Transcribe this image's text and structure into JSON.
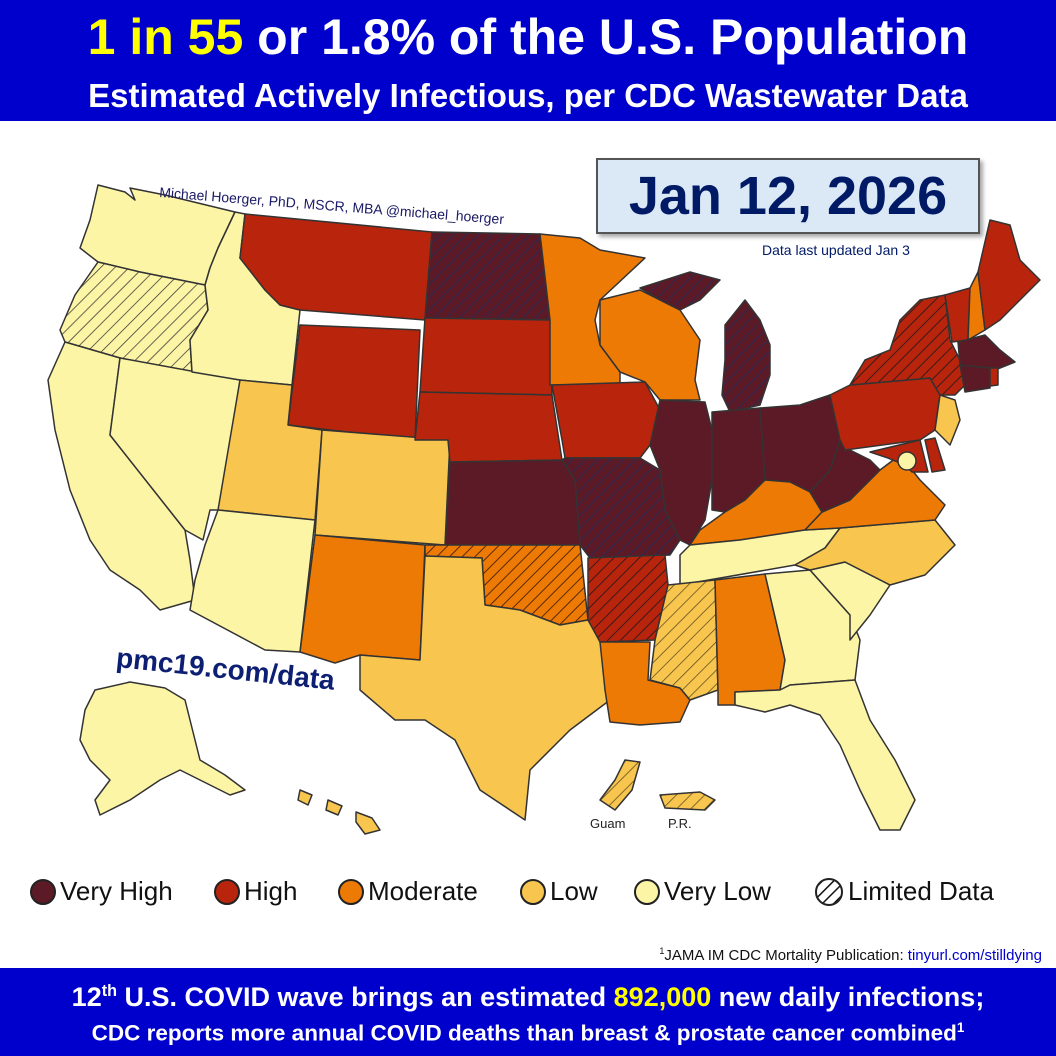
{
  "header": {
    "headline_highlight": "1 in 55",
    "headline_rest": " or 1.8% of the U.S. Population",
    "subheadline": "Estimated Actively Infectious, per CDC Wastewater Data"
  },
  "date": "Jan 12, 2026",
  "data_updated": "Data last updated  Jan 3",
  "author": "Michael Hoerger, PhD, MSCR, MBA  @michael_hoerger",
  "website": "pmc19.com/data",
  "territory_labels": {
    "guam": "Guam",
    "pr": "P.R."
  },
  "legend": [
    {
      "label": "Very High",
      "color": "#5c1a26"
    },
    {
      "label": "High",
      "color": "#b8250c"
    },
    {
      "label": "Moderate",
      "color": "#ee7a06"
    },
    {
      "label": "Low",
      "color": "#f8c64e"
    },
    {
      "label": "Very Low",
      "color": "#fdf5a6"
    },
    {
      "label": "Limited Data",
      "color": "hatched"
    }
  ],
  "states": {
    "WA": "Very Low",
    "OR": "Limited Data",
    "CA": "Very Low",
    "NV": "Very Low",
    "ID": "Very Low",
    "MT": "High",
    "WY": "High",
    "UT": "Low",
    "CO": "Low",
    "AZ": "Very Low",
    "NM": "Moderate",
    "ND": "Very High (Limited Data)",
    "SD": "High",
    "NE": "High",
    "KS": "Very High",
    "OK": "Moderate (Limited Data)",
    "TX": "Low",
    "MN": "Moderate",
    "IA": "High",
    "MO": "Very High (Limited Data)",
    "AR": "High (Limited Data)",
    "LA": "Moderate",
    "WI": "Moderate",
    "IL": "Very High",
    "MI": "Very High (Limited Data)",
    "IN": "Very High",
    "OH": "Very High",
    "KY": "Moderate",
    "TN": "Very Low",
    "MS": "Low (Limited Data)",
    "AL": "Moderate",
    "GA": "Very Low",
    "FL": "Very Low",
    "SC": "Very Low",
    "NC": "Low",
    "VA": "Moderate",
    "WV": "Very High",
    "PA": "High",
    "NY": "High (Limited Data)",
    "ME": "High",
    "VT": "High",
    "NH": "Moderate",
    "MA": "Very High",
    "CT": "Very High",
    "RI": "High",
    "NJ": "Low",
    "DE": "High",
    "MD": "High",
    "DC": "Very Low",
    "AK": "Very Low",
    "HI": "Low",
    "Guam": "Low (Limited Data)",
    "PR": "Low (Limited Data)"
  },
  "footnote": {
    "text": "JAMA IM CDC Mortality Publication: ",
    "link": "tinyurl.com/stilldying"
  },
  "bottom": {
    "line1_prefix": "U.S. COVID wave brings an estimated ",
    "line1_number": "892,000",
    "line1_suffix": " new daily infections;",
    "wave_ordinal": "12",
    "wave_suffix": "th",
    "line2": "CDC reports more annual COVID deaths than breast & prostate cancer combined"
  }
}
